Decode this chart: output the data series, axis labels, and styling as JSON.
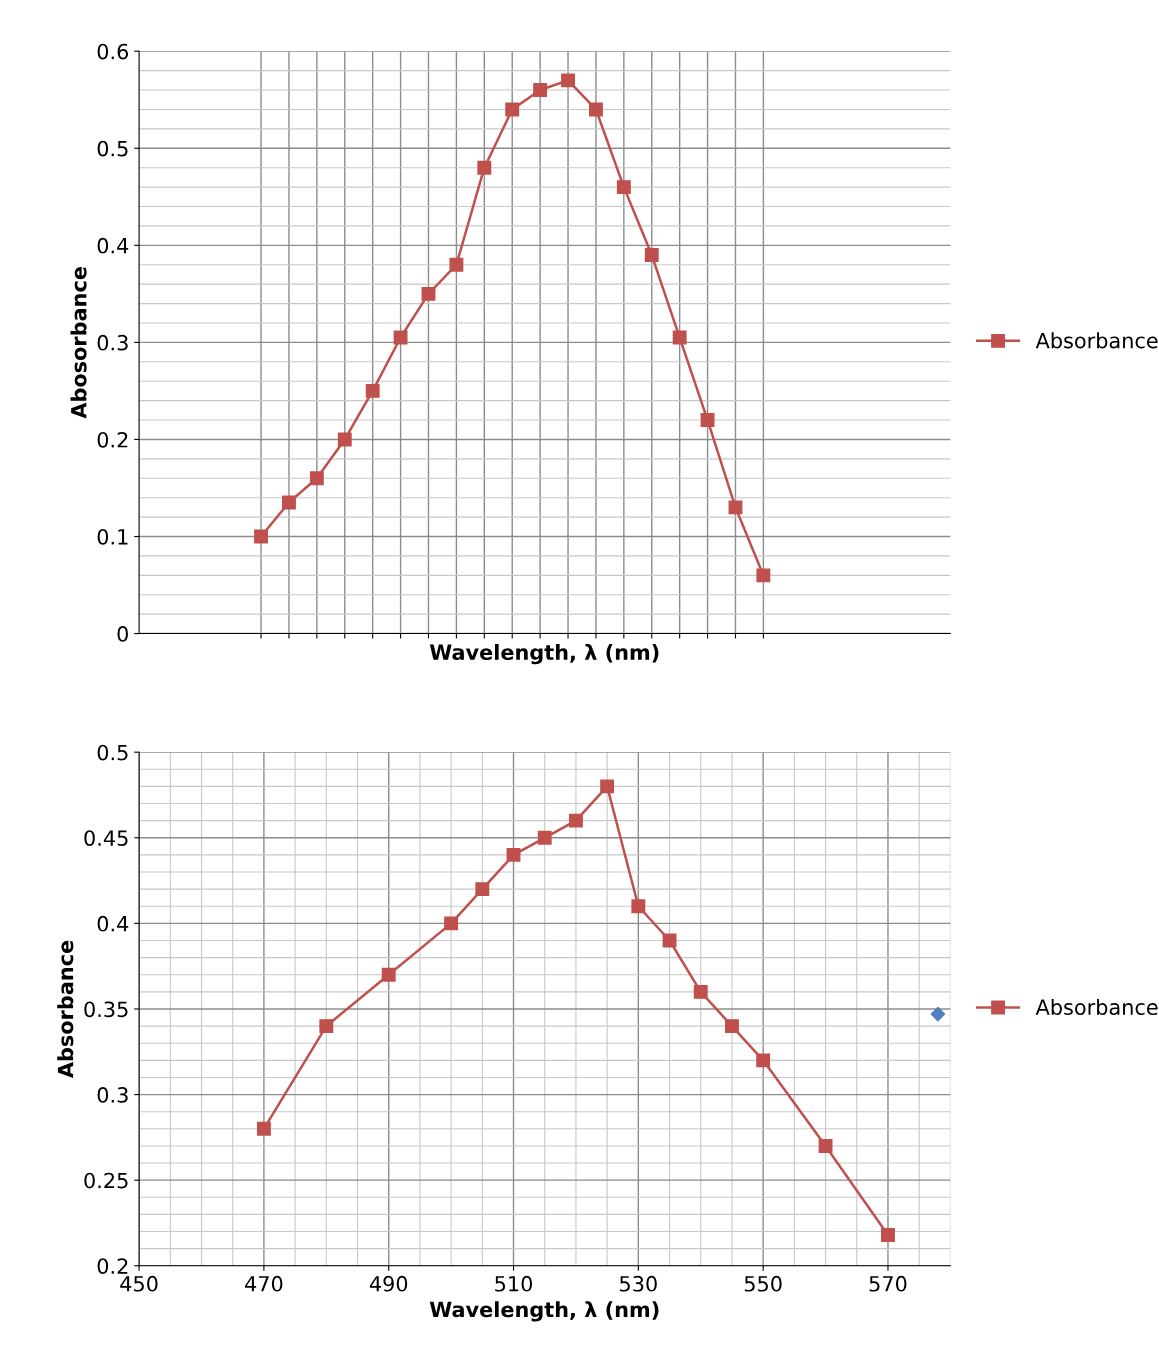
{
  "chart_data": [
    {
      "type": "line",
      "xlabel": "Wavelength, λ (nm)",
      "ylabel": "Abosorbance",
      "categories": [
        null,
        null,
        null,
        null,
        null,
        null,
        null,
        null,
        null,
        null,
        null,
        null,
        null,
        null,
        null,
        null,
        null,
        null,
        null
      ],
      "series": [
        {
          "name": "Absorbance",
          "color": "#c0504d",
          "values": [
            0.1,
            0.135,
            0.16,
            0.2,
            0.25,
            0.305,
            0.35,
            0.38,
            0.48,
            0.54,
            0.56,
            0.57,
            0.54,
            0.46,
            0.39,
            0.305,
            0.22,
            0.13,
            0.06
          ]
        }
      ],
      "ylim": [
        0,
        0.6
      ],
      "yticks": [
        0,
        0.1,
        0.2,
        0.3,
        0.4,
        0.5,
        0.6
      ],
      "tick_labels": "y",
      "grid": true,
      "legend": "right",
      "marker": "square",
      "line_style": "solid"
    },
    {
      "type": "line",
      "xlabel": "Wavelength, λ (nm)",
      "ylabel": "Absorbance",
      "x": [
        470,
        480,
        490,
        500,
        505,
        510,
        515,
        520,
        525,
        530,
        535,
        540,
        545,
        550,
        560,
        570
      ],
      "series": [
        {
          "name": "Absorbance",
          "color": "#c0504d",
          "values": [
            0.28,
            0.34,
            0.37,
            0.4,
            0.42,
            0.44,
            0.45,
            0.46,
            0.48,
            0.41,
            0.39,
            0.36,
            0.34,
            0.32,
            0.27,
            0.218
          ]
        },
        {
          "type": "scatter",
          "color": "#4f81bd",
          "marker": "diamond",
          "x": [
            578
          ],
          "values": [
            0.347
          ]
        }
      ],
      "xlim": [
        450,
        580
      ],
      "xticks": [
        450,
        470,
        490,
        510,
        530,
        550,
        570
      ],
      "ylim": [
        0.2,
        0.5
      ],
      "yticks": [
        0.2,
        0.25,
        0.3,
        0.35,
        0.4,
        0.45,
        0.5
      ],
      "grid": true,
      "legend": "right",
      "marker": "square",
      "line_style": "solid"
    }
  ]
}
